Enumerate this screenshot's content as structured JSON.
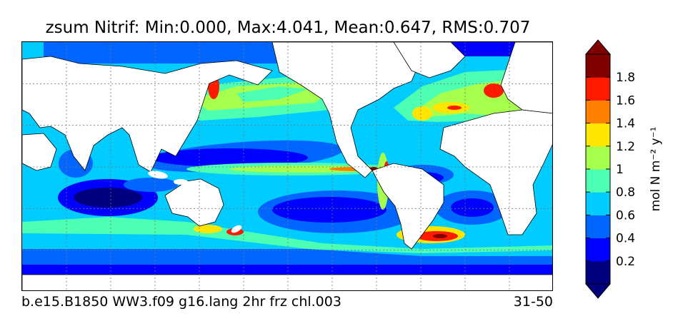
{
  "chart_data": {
    "type": "heatmap",
    "title": "zsum Nitrif: Min:0.000, Max:4.041, Mean:0.647, RMS:0.707",
    "variable": "zsum Nitrif",
    "stats": {
      "min": "0.000",
      "max": "4.041",
      "mean": "0.647",
      "rms": "0.707"
    },
    "colorbar": {
      "label": "mol N m⁻² y⁻¹",
      "levels": [
        0,
        0.2,
        0.4,
        0.6,
        0.8,
        1.0,
        1.2,
        1.4,
        1.6,
        1.8,
        2.0
      ],
      "tick_labels": [
        "0.2",
        "0.4",
        "0.6",
        "0.8",
        "1",
        "1.2",
        "1.4",
        "1.6",
        "1.8"
      ],
      "colors": [
        "#00007f",
        "#0000ff",
        "#0066ff",
        "#00ccff",
        "#4dffb3",
        "#a6ff4d",
        "#ffe600",
        "#ff8000",
        "#ff1a00",
        "#800000"
      ],
      "extend": "both"
    },
    "grid": true,
    "map": {
      "land_color": "#ffffff",
      "coastline_color": "#000000"
    }
  },
  "captions": {
    "case": "b.e15.B1850 WW3.f09 g16.lang 2hr frz chl.003",
    "years": "31-50"
  }
}
